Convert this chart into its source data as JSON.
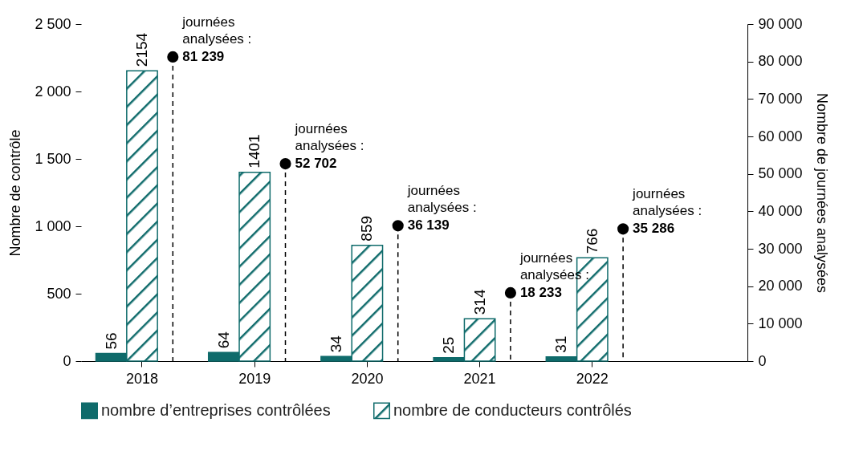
{
  "chart_data": {
    "type": "bar",
    "ylabel": "Nombre de contrôle",
    "y2label": "Nombre de journées analysées",
    "categories": [
      "2018",
      "2019",
      "2020",
      "2021",
      "2022"
    ],
    "series": [
      {
        "name": "nombre d’entreprises contrôlées",
        "color": "#0f6b6b",
        "values": [
          56,
          64,
          34,
          25,
          31
        ]
      },
      {
        "name": "nombre de conducteurs contrôlés",
        "color": "#0f6b6b",
        "values": [
          2154,
          1401,
          859,
          314,
          766
        ]
      },
      {
        "type": "lollipop",
        "axis": "y2",
        "color": "#000000",
        "line_style": "dashed",
        "marker": "circle",
        "values": [
          81239,
          52702,
          36139,
          18233,
          35286
        ],
        "value_labels": [
          "81 239",
          "52 702",
          "36 139",
          "18 233",
          "35 286"
        ]
      }
    ],
    "annotations": [
      "journées analysées :",
      "journées analysées :",
      "journées analysées :",
      "journées analysées :",
      "journées analysées :"
    ],
    "data_labels": true,
    "ylim": [
      0,
      2500
    ],
    "yticks": [
      0,
      500,
      {
        "value": 1000,
        "label": "1 000"
      },
      {
        "value": 1500,
        "label": "1 500"
      },
      {
        "value": 2000,
        "label": "2 000"
      },
      {
        "value": 2500,
        "label": "2 500"
      }
    ],
    "y2lim": [
      0,
      90000
    ],
    "y2ticks": [
      0,
      {
        "value": 10000,
        "label": "10 000"
      },
      {
        "value": 20000,
        "label": "20 000"
      },
      {
        "value": 30000,
        "label": "30 000"
      },
      {
        "value": 40000,
        "label": "40 000"
      },
      {
        "value": 50000,
        "label": "50 000"
      },
      {
        "value": 60000,
        "label": "60 000"
      },
      {
        "value": 70000,
        "label": "70 000"
      },
      {
        "value": 80000,
        "label": "80 000"
      },
      {
        "value": 90000,
        "label": "90 000"
      }
    ],
    "grid": false,
    "legend": "bottom"
  }
}
